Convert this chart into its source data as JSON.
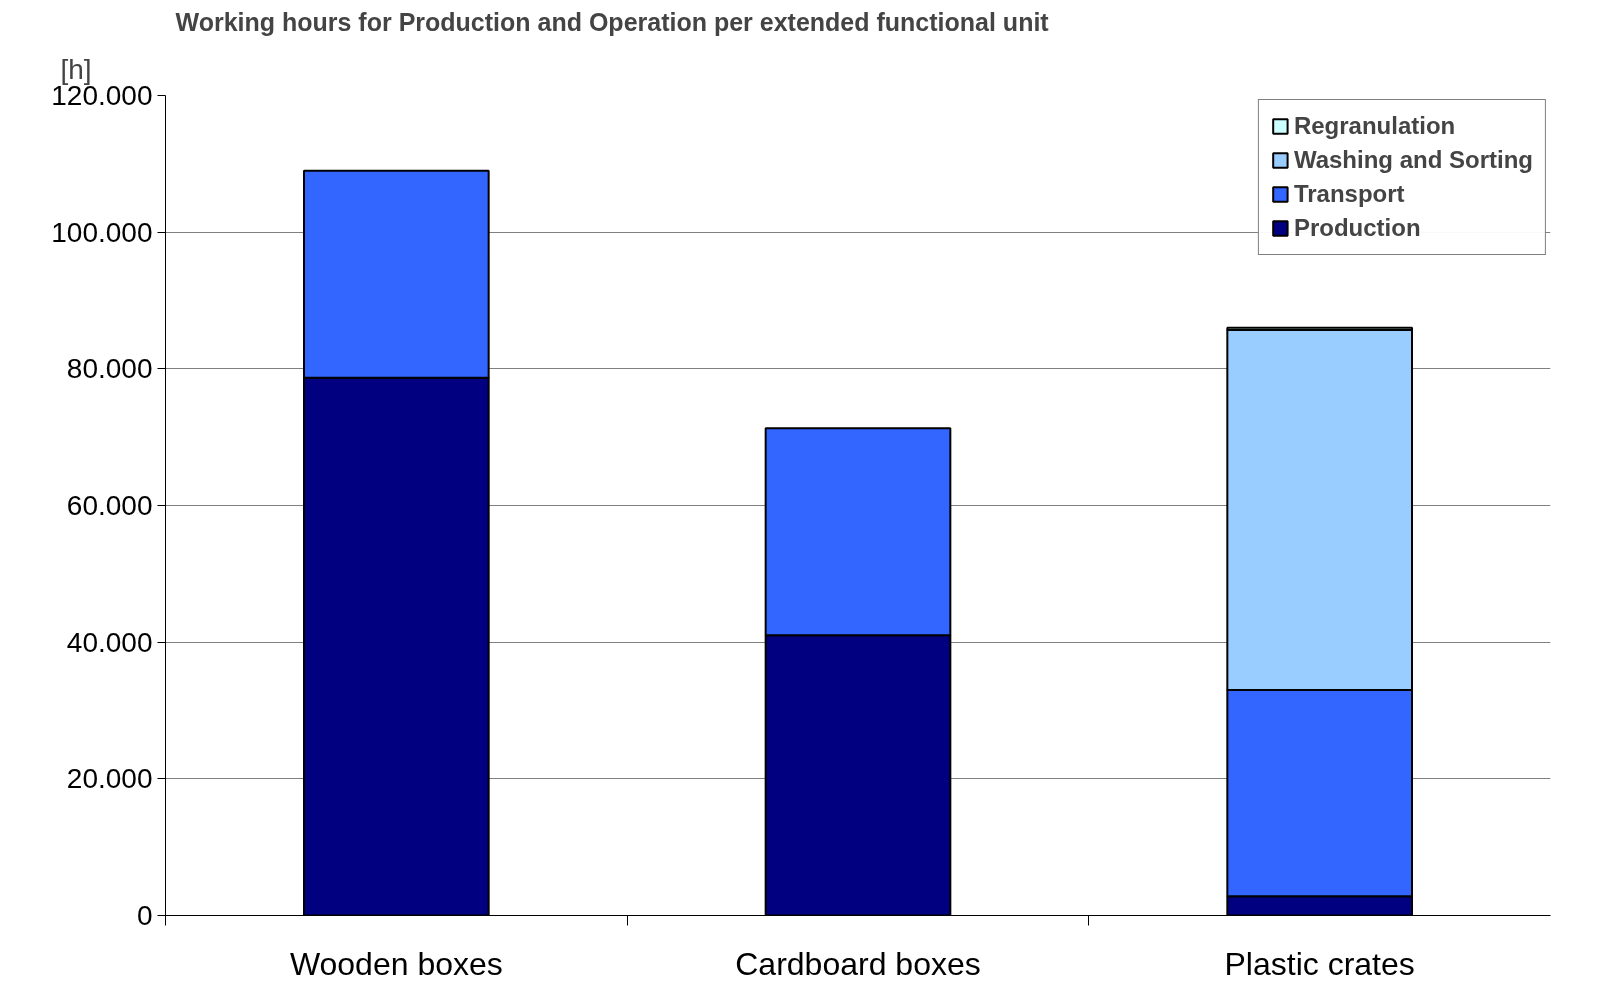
{
  "chart_data": {
    "type": "bar",
    "title": "Working hours for Production and Operation per extended functional unit",
    "ylabel": "[h]",
    "categories": [
      "Wooden boxes",
      "Cardboard boxes",
      "Plastic crates"
    ],
    "stacked": true,
    "series": [
      {
        "name": "Production",
        "color": "#000080",
        "values": [
          78700,
          41000,
          2800
        ]
      },
      {
        "name": "Transport",
        "color": "#3366ff",
        "values": [
          30300,
          30300,
          30200
        ]
      },
      {
        "name": "Washing and Sorting",
        "color": "#99ccff",
        "values": [
          null,
          null,
          52700
        ]
      },
      {
        "name": "Regranulation",
        "color": "#ccffff",
        "values": [
          null,
          null,
          300
        ]
      }
    ],
    "ylim": [
      0,
      120000
    ],
    "yticks": [
      {
        "value": 0,
        "label": "0"
      },
      {
        "value": 20000,
        "label": "20.000"
      },
      {
        "value": 40000,
        "label": "40.000"
      },
      {
        "value": 60000,
        "label": "60.000"
      },
      {
        "value": 80000,
        "label": "80.000"
      },
      {
        "value": 100000,
        "label": "100.000"
      },
      {
        "value": 120000,
        "label": "120.000"
      }
    ],
    "grid": "y",
    "legend": "top right"
  }
}
